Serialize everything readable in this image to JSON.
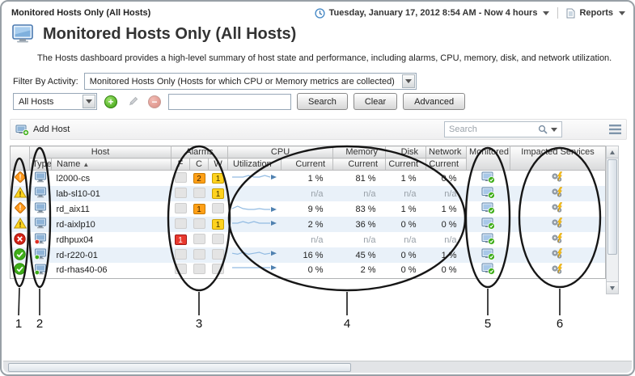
{
  "header": {
    "breadcrumb": "Monitored Hosts Only (All Hosts)",
    "time_range": "Tuesday, January 17, 2012 8:54 AM - Now 4 hours",
    "reports_label": "Reports"
  },
  "page": {
    "title": "Monitored Hosts Only (All Hosts)",
    "description": "The Hosts dashboard provides a high-level summary of host state and performance, including alarms, CPU, memory, disk, and network utilization."
  },
  "filter_bar": {
    "activity_label": "Filter By Activity:",
    "activity_value": "Monitored Hosts Only (Hosts for which CPU or Memory metrics are collected)",
    "scope_value": "All Hosts",
    "search_text_value": "",
    "search_button": "Search",
    "clear_button": "Clear",
    "advanced_button": "Advanced"
  },
  "table_toolbar": {
    "add_host_label": "Add Host",
    "search_placeholder": "Search"
  },
  "table": {
    "group_headers": {
      "host": "Host",
      "alarms": "Alarms",
      "cpu": "CPU",
      "memory": "Memory",
      "disk": "Disk",
      "network": "Network",
      "monitored": "Monitored",
      "impacted_services": "Impacted Services"
    },
    "sub_headers": {
      "type": "Type",
      "name": "Name",
      "sort_indicator": "▲",
      "fatal": "F",
      "critical": "C",
      "warning": "W",
      "utilization": "Utilization",
      "current": "Current"
    },
    "rows": [
      {
        "status": "critical",
        "name": "l2000-cs",
        "alarms": {
          "f": "",
          "c": "2",
          "w": "1"
        },
        "spark": [
          2,
          2,
          2,
          3,
          2,
          2,
          3,
          2
        ],
        "cpu_current": "1 %",
        "memory_current": "81 %",
        "disk_current": "1 %",
        "network_current": "0 %",
        "type_dot": ""
      },
      {
        "status": "warning",
        "name": "lab-sl10-01",
        "alarms": {
          "f": "",
          "c": "",
          "w": "1"
        },
        "spark": null,
        "cpu_current": "n/a",
        "memory_current": "n/a",
        "disk_current": "n/a",
        "network_current": "n/a",
        "type_dot": ""
      },
      {
        "status": "critical",
        "name": "rd_aix11",
        "alarms": {
          "f": "",
          "c": "1",
          "w": ""
        },
        "spark": [
          3,
          6,
          3,
          2,
          2,
          3,
          2,
          2
        ],
        "cpu_current": "9 %",
        "memory_current": "83 %",
        "disk_current": "1 %",
        "network_current": "1 %",
        "type_dot": ""
      },
      {
        "status": "warning",
        "name": "rd-aixlp10",
        "alarms": {
          "f": "",
          "c": "",
          "w": "1"
        },
        "spark": [
          2,
          2,
          3,
          2,
          3,
          2,
          2,
          2
        ],
        "cpu_current": "2 %",
        "memory_current": "36 %",
        "disk_current": "0 %",
        "network_current": "0 %",
        "type_dot": ""
      },
      {
        "status": "fatal",
        "name": "rdhpux04",
        "alarms": {
          "f": "1",
          "c": "",
          "w": ""
        },
        "spark": null,
        "cpu_current": "n/a",
        "memory_current": "n/a",
        "disk_current": "n/a",
        "network_current": "n/a",
        "type_dot": "red"
      },
      {
        "status": "normal",
        "name": "rd-r220-01",
        "alarms": {
          "f": "",
          "c": "",
          "w": ""
        },
        "spark": [
          4,
          3,
          5,
          3,
          4,
          5,
          3,
          4
        ],
        "cpu_current": "16 %",
        "memory_current": "45 %",
        "disk_current": "0 %",
        "network_current": "1 %",
        "type_dot": "green"
      },
      {
        "status": "normal",
        "name": "rd-rhas40-06",
        "alarms": {
          "f": "",
          "c": "",
          "w": ""
        },
        "spark": [
          2,
          2,
          2,
          2,
          2,
          2,
          2,
          2
        ],
        "cpu_current": "0 %",
        "memory_current": "2 %",
        "disk_current": "0 %",
        "network_current": "0 %",
        "type_dot": "green"
      }
    ]
  },
  "annotations": {
    "labels": [
      "1",
      "2",
      "3",
      "4",
      "5",
      "6"
    ]
  }
}
